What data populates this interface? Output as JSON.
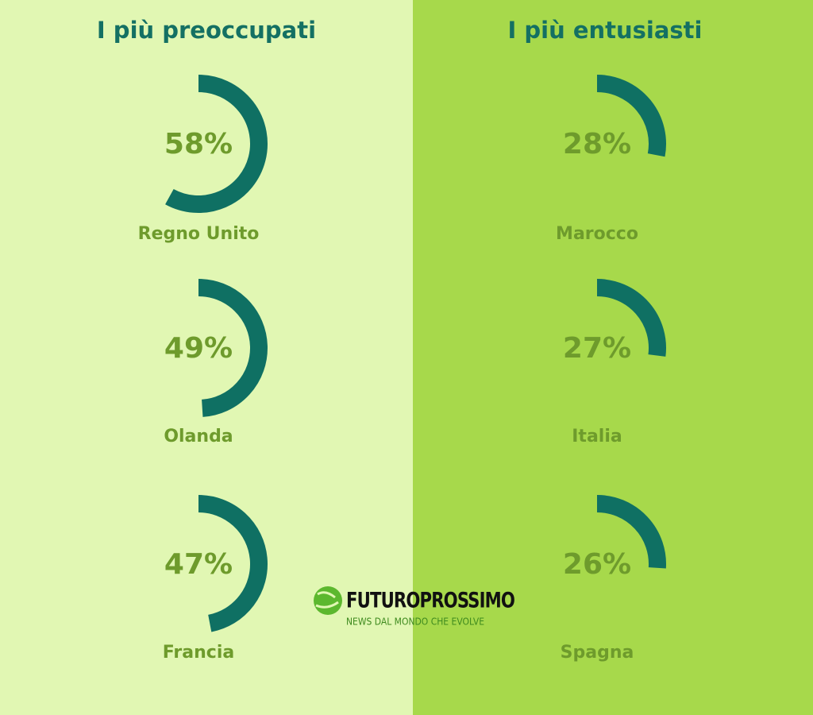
{
  "chart_data": [
    {
      "type": "gauge",
      "title": "I più preoccupati",
      "categories": [
        "Regno Unito",
        "Olanda",
        "Francia"
      ],
      "values": [
        58,
        49,
        47
      ],
      "value_labels": [
        "58%",
        "49%",
        "47%"
      ],
      "color": "#0f7063"
    },
    {
      "type": "gauge",
      "title": "I più entusiasti",
      "categories": [
        "Marocco",
        "Italia",
        "Spagna"
      ],
      "values": [
        28,
        27,
        26
      ],
      "value_labels": [
        "28%",
        "27%",
        "26%"
      ],
      "color": "#0f7063"
    }
  ],
  "logo": {
    "name": "FUTUROPROSSIMO",
    "tagline": "NEWS DAL MONDO CHE EVOLVE"
  }
}
